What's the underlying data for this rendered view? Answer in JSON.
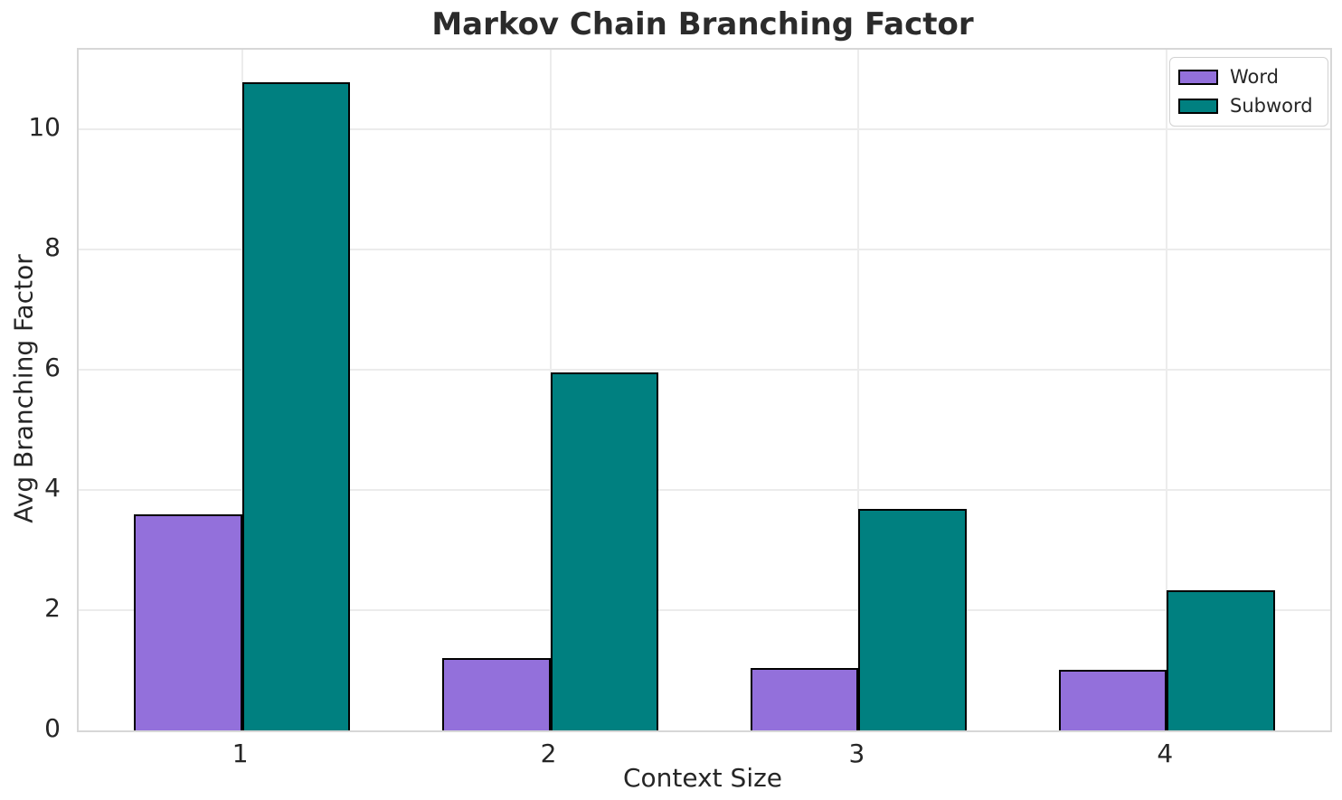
{
  "chart_data": {
    "type": "bar",
    "title": "Markov Chain Branching Factor",
    "xlabel": "Context Size",
    "ylabel": "Avg Branching Factor",
    "categories": [
      "1",
      "2",
      "3",
      "4"
    ],
    "series": [
      {
        "name": "Word",
        "color": "#9370DB",
        "values": [
          3.6,
          1.2,
          1.03,
          1.0
        ]
      },
      {
        "name": "Subword",
        "color": "#008080",
        "values": [
          10.78,
          5.95,
          3.68,
          2.33
        ]
      }
    ],
    "bar_edge_color": "#000000",
    "bar_width_units": 0.35,
    "yticks": [
      0,
      2,
      4,
      6,
      8,
      10
    ],
    "ylim": [
      0,
      11.32
    ],
    "grid": true,
    "legend_position": "upper right"
  },
  "colors": {
    "background": "#ffffff",
    "grid": "#ececec",
    "spine": "#d7d7d7",
    "text": "#262626",
    "title_text": "#2b2b2b"
  }
}
